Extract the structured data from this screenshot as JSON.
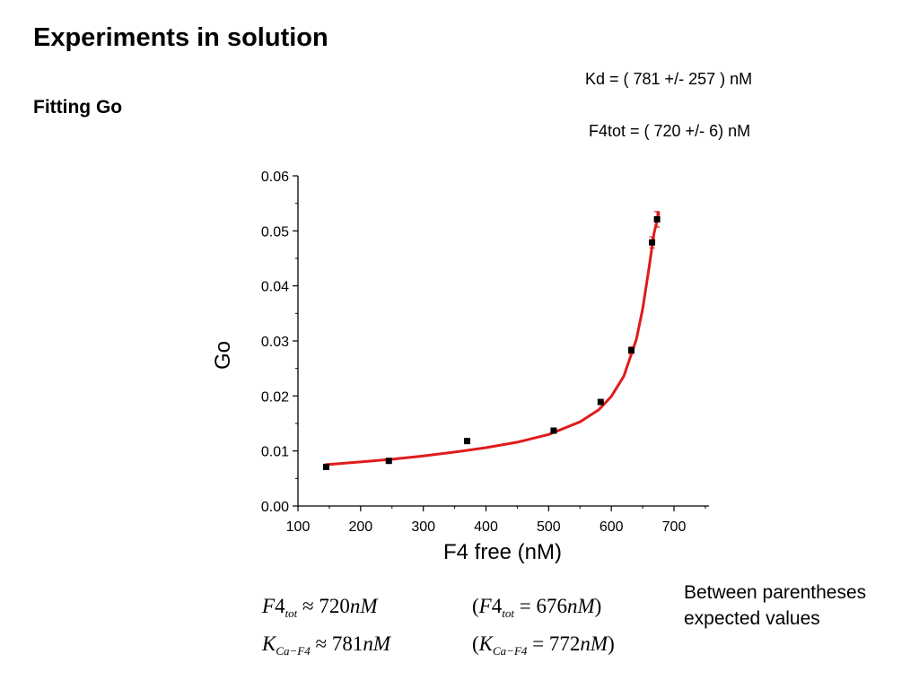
{
  "slide": {
    "title": "Experiments in solution",
    "subtitle": "Fitting Go",
    "kd_result": "Kd = ( 781  +/- 257 ) nM",
    "f4tot_result": "F4tot = ( 720  +/- 6) nM",
    "note": "Between parentheses expected values"
  },
  "equations": {
    "f4tot_fit": {
      "sym": "F",
      "n": "4",
      "sub": "tot",
      "rel": "≈",
      "value": "720",
      "unit": "nM"
    },
    "f4tot_exp": {
      "sym": "F",
      "n": "4",
      "sub": "tot",
      "rel": "=",
      "value": "676",
      "unit": "nM"
    },
    "kd_fit": {
      "sym": "K",
      "n": "",
      "sub": "Ca−F4",
      "rel": "≈",
      "value": "781",
      "unit": "nM"
    },
    "kd_exp": {
      "sym": "K",
      "n": "",
      "sub": "Ca−F4",
      "rel": "=",
      "value": "772",
      "unit": "nM"
    }
  },
  "chart_data": {
    "type": "scatter",
    "xlabel": "F4 free (nM)",
    "ylabel": "Go",
    "xlim": [
      100,
      750
    ],
    "ylim": [
      0,
      0.06
    ],
    "xticks": [
      100,
      200,
      300,
      400,
      500,
      600,
      700
    ],
    "yticks": [
      0.0,
      0.01,
      0.02,
      0.03,
      0.04,
      0.05,
      0.06
    ],
    "ytick_labels": [
      "0.00",
      "0.01",
      "0.02",
      "0.03",
      "0.04",
      "0.05",
      "0.06"
    ],
    "grid": false,
    "points": [
      {
        "x": 145,
        "y": 0.0071,
        "err": 0.0003
      },
      {
        "x": 245,
        "y": 0.0082,
        "err": 0.0003
      },
      {
        "x": 370,
        "y": 0.0118,
        "err": 0.0003
      },
      {
        "x": 508,
        "y": 0.0137,
        "err": 0.0004
      },
      {
        "x": 583,
        "y": 0.0189,
        "err": 0.0004
      },
      {
        "x": 632,
        "y": 0.0283,
        "err": 0.0006
      },
      {
        "x": 665,
        "y": 0.0479,
        "err": 0.001
      },
      {
        "x": 673,
        "y": 0.0521,
        "err": 0.0014
      }
    ],
    "fit": {
      "color": "#e01b1b",
      "x": [
        143,
        200,
        250,
        300,
        350,
        400,
        450,
        500,
        550,
        580,
        600,
        620,
        640,
        650,
        660,
        668,
        676
      ],
      "y": [
        0.0075,
        0.008,
        0.0085,
        0.0091,
        0.0098,
        0.0106,
        0.0116,
        0.013,
        0.0153,
        0.0175,
        0.0199,
        0.0236,
        0.0303,
        0.0358,
        0.0432,
        0.0495,
        0.0534
      ]
    },
    "marker_color": "#000000"
  }
}
